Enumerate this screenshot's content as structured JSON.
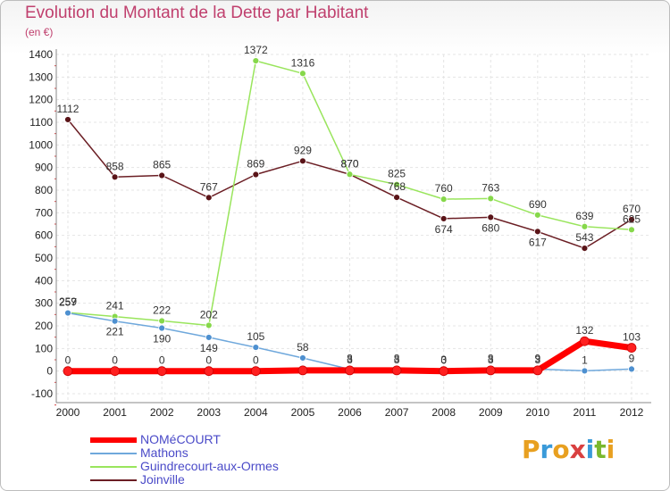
{
  "header": {
    "title": "Evolution du Montant de la Dette par Habitant",
    "unit": "(en €)"
  },
  "logo": {
    "text": "Proxiti",
    "colors": [
      "#e8a020",
      "#3a9ad9",
      "#e8a020",
      "#d94040",
      "#3a9ad9",
      "#7ab82e",
      "#e8a020"
    ]
  },
  "chart_data": {
    "type": "line",
    "title": "Evolution du Montant de la Dette par Habitant",
    "ylabel": "(en €)",
    "xlabel": "",
    "ylim": [
      -100,
      1400
    ],
    "yticks": [
      -100,
      0,
      100,
      200,
      300,
      400,
      500,
      600,
      700,
      800,
      900,
      1000,
      1100,
      1200,
      1300,
      1400
    ],
    "x": [
      "2000",
      "2001",
      "2002",
      "2003",
      "2004",
      "2005",
      "2006",
      "2007",
      "2008",
      "2009",
      "2010",
      "2011",
      "2012"
    ],
    "grid": true,
    "legend_position": "bottom-left",
    "series": [
      {
        "name": "NOMéCOURT",
        "color": "#ff0000",
        "values": [
          0,
          0,
          0,
          0,
          0,
          3,
          3,
          3,
          0,
          3,
          3,
          132,
          103
        ],
        "labels": [
          "0",
          "0",
          "0",
          "0",
          "0",
          "",
          "3",
          "3",
          "0",
          "3",
          "3",
          "132",
          "103"
        ]
      },
      {
        "name": "Mathons",
        "color": "#6fa8dc",
        "values": [
          257,
          221,
          190,
          149,
          105,
          58,
          8,
          8,
          3,
          8,
          9,
          1,
          9
        ],
        "labels": [
          "257",
          "221",
          "190",
          "149",
          "105",
          "58",
          "8",
          "8",
          "3",
          "8",
          "9",
          "1",
          "9"
        ]
      },
      {
        "name": "Guindrecourt-aux-Ormes",
        "color": "#99e55c",
        "values": [
          259,
          241,
          222,
          202,
          1372,
          1316,
          870,
          825,
          760,
          763,
          690,
          639,
          625
        ],
        "labels": [
          "259",
          "241",
          "222",
          "202",
          "1372",
          "1316",
          "870",
          "825",
          "760",
          "763",
          "690",
          "639",
          "625"
        ]
      },
      {
        "name": "Joinville",
        "color": "#6b1e24",
        "values": [
          1112,
          858,
          865,
          767,
          869,
          929,
          870,
          768,
          674,
          680,
          617,
          543,
          670
        ],
        "labels": [
          "1112",
          "858",
          "865",
          "767",
          "869",
          "929",
          "870",
          "768",
          "674",
          "680",
          "617",
          "543",
          "670"
        ]
      }
    ]
  }
}
